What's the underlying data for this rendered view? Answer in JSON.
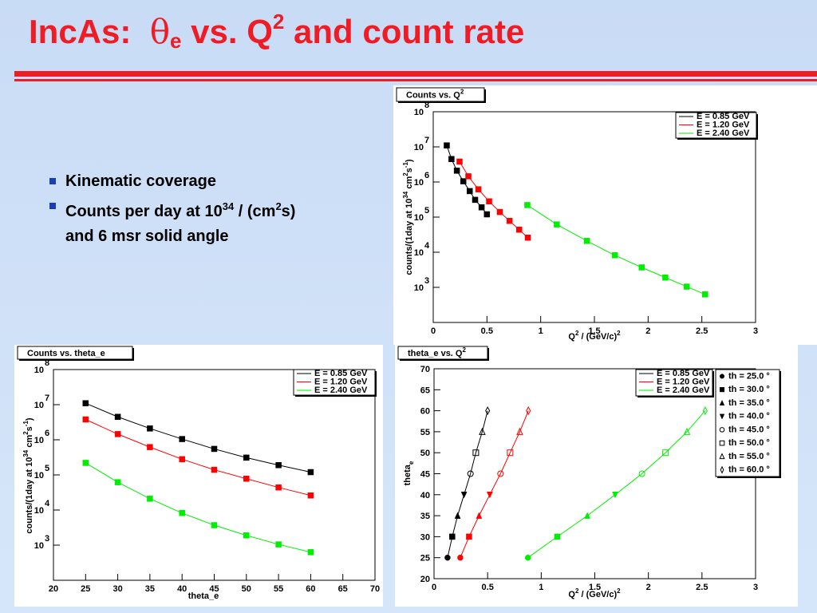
{
  "slide": {
    "title": [
      "IncAs:",
      "θ",
      "e",
      "vs. Q",
      "2",
      "and count rate"
    ],
    "bullets": [
      [
        "Kinematic coverage"
      ],
      [
        "Counts per day at 10",
        "34",
        " / (cm",
        "2",
        "s)",
        "and 6 msr solid angle"
      ]
    ]
  },
  "chart_data": [
    {
      "type": "line",
      "title": [
        "Counts vs. Q",
        "2"
      ],
      "xlabel": [
        "Q",
        "2",
        " / (GeV/c)",
        "2"
      ],
      "ylabel": [
        "counts/(1day at 10",
        "34",
        " cm",
        "2",
        "s",
        "-1",
        ")"
      ],
      "log_y": true,
      "xlim": [
        0,
        3
      ],
      "xticks": [
        0,
        0.5,
        1,
        1.5,
        2,
        2.5,
        3
      ],
      "ylim": [
        100,
        100000000
      ],
      "yticks": [
        {
          "value": 1000,
          "label": "10",
          "exponent": "3"
        },
        {
          "value": 10000,
          "label": "10",
          "exponent": "4"
        },
        {
          "value": 100000,
          "label": "10",
          "exponent": "5"
        },
        {
          "value": 1000000,
          "label": "10",
          "exponent": "6"
        },
        {
          "value": 10000000,
          "label": "10",
          "exponent": "7"
        },
        {
          "value": 100000000,
          "label": "10",
          "exponent": "8"
        }
      ],
      "legend": "upper right",
      "marker": "square-filled",
      "series": [
        {
          "name": "E = 0.85 GeV",
          "color": "#000000",
          "x": [
            0.126,
            0.17,
            0.22,
            0.28,
            0.34,
            0.39,
            0.45,
            0.5
          ],
          "values": [
            11000000,
            4500000,
            2100000,
            1050000,
            550000,
            310000,
            190000,
            120000
          ]
        },
        {
          "name": "E = 1.20 GeV",
          "color": "#ff0000",
          "x": [
            0.245,
            0.327,
            0.42,
            0.52,
            0.62,
            0.71,
            0.8,
            0.88
          ],
          "values": [
            3800000,
            1450000,
            620000,
            280000,
            140000,
            78000,
            44000,
            26000
          ]
        },
        {
          "name": "E = 2.40 GeV",
          "color": "#00ee00",
          "x": [
            0.876,
            1.15,
            1.43,
            1.69,
            1.94,
            2.16,
            2.36,
            2.53
          ],
          "values": [
            220000,
            62000,
            21000,
            8200,
            3700,
            1900,
            1050,
            630
          ]
        }
      ]
    },
    {
      "type": "line",
      "title": [
        "Counts vs. theta_e"
      ],
      "xlabel": [
        "theta_e"
      ],
      "ylabel": [
        "counts/(1day at 10",
        "34",
        " cm",
        "2",
        "s",
        "-1",
        ")"
      ],
      "log_y": true,
      "x": [
        25,
        30,
        35,
        40,
        45,
        50,
        55,
        60
      ],
      "xlim": [
        20,
        70
      ],
      "xticks": [
        20,
        25,
        30,
        35,
        40,
        45,
        50,
        55,
        60,
        65,
        70
      ],
      "ylim": [
        100,
        100000000
      ],
      "yticks": [
        {
          "value": 1000,
          "label": "10",
          "exponent": "3"
        },
        {
          "value": 10000,
          "label": "10",
          "exponent": "4"
        },
        {
          "value": 100000,
          "label": "10",
          "exponent": "5"
        },
        {
          "value": 1000000,
          "label": "10",
          "exponent": "6"
        },
        {
          "value": 10000000,
          "label": "10",
          "exponent": "7"
        },
        {
          "value": 100000000,
          "label": "10",
          "exponent": "8"
        }
      ],
      "legend": "upper right",
      "marker": "square-filled",
      "series": [
        {
          "name": "E = 0.85 GeV",
          "color": "#000000",
          "values": [
            11000000,
            4500000,
            2100000,
            1050000,
            550000,
            310000,
            190000,
            120000
          ]
        },
        {
          "name": "E = 1.20 GeV",
          "color": "#ff0000",
          "values": [
            3800000,
            1450000,
            620000,
            280000,
            140000,
            78000,
            44000,
            26000
          ]
        },
        {
          "name": "E = 2.40 GeV",
          "color": "#00ee00",
          "values": [
            220000,
            62000,
            21000,
            8200,
            3700,
            1900,
            1050,
            630
          ]
        }
      ]
    },
    {
      "type": "line",
      "title": [
        "theta_e vs. Q",
        "2"
      ],
      "xlabel": [
        "Q",
        "2",
        " / (GeV/c)",
        "2"
      ],
      "ylabel": [
        "theta",
        "e"
      ],
      "ylabel_script": "sub",
      "log_y": false,
      "xlim": [
        0,
        3
      ],
      "xticks": [
        0,
        0.5,
        1,
        1.5,
        2,
        2.5,
        3
      ],
      "ylim": [
        20,
        70
      ],
      "yticks": [
        20,
        25,
        30,
        35,
        40,
        45,
        50,
        55,
        60,
        65,
        70
      ],
      "legend": "upper right",
      "markers": [
        {
          "label": "th = 25.0 °",
          "shape": "circle-filled"
        },
        {
          "label": "th = 30.0 °",
          "shape": "square-filled"
        },
        {
          "label": "th = 35.0 °",
          "shape": "triangle-up-filled"
        },
        {
          "label": "th = 40.0 °",
          "shape": "triangle-down-filled"
        },
        {
          "label": "th = 45.0 °",
          "shape": "circle-open"
        },
        {
          "label": "th = 50.0 °",
          "shape": "square-open"
        },
        {
          "label": "th = 55.0 °",
          "shape": "triangle-up-open"
        },
        {
          "label": "th = 60.0 °",
          "shape": "diamond-open"
        }
      ],
      "series": [
        {
          "name": "E = 0.85 GeV",
          "color": "#000000",
          "x": [
            0.126,
            0.17,
            0.22,
            0.28,
            0.34,
            0.39,
            0.45,
            0.5
          ],
          "values": [
            25,
            30,
            35,
            40,
            45,
            50,
            55,
            60
          ]
        },
        {
          "name": "E = 1.20 GeV",
          "color": "#ff0000",
          "x": [
            0.245,
            0.327,
            0.42,
            0.52,
            0.62,
            0.71,
            0.8,
            0.88
          ],
          "values": [
            25,
            30,
            35,
            40,
            45,
            50,
            55,
            60
          ]
        },
        {
          "name": "E = 2.40 GeV",
          "color": "#00ee00",
          "x": [
            0.876,
            1.15,
            1.43,
            1.69,
            1.94,
            2.16,
            2.36,
            2.53
          ],
          "values": [
            25,
            30,
            35,
            40,
            45,
            50,
            55,
            60
          ]
        }
      ]
    }
  ]
}
